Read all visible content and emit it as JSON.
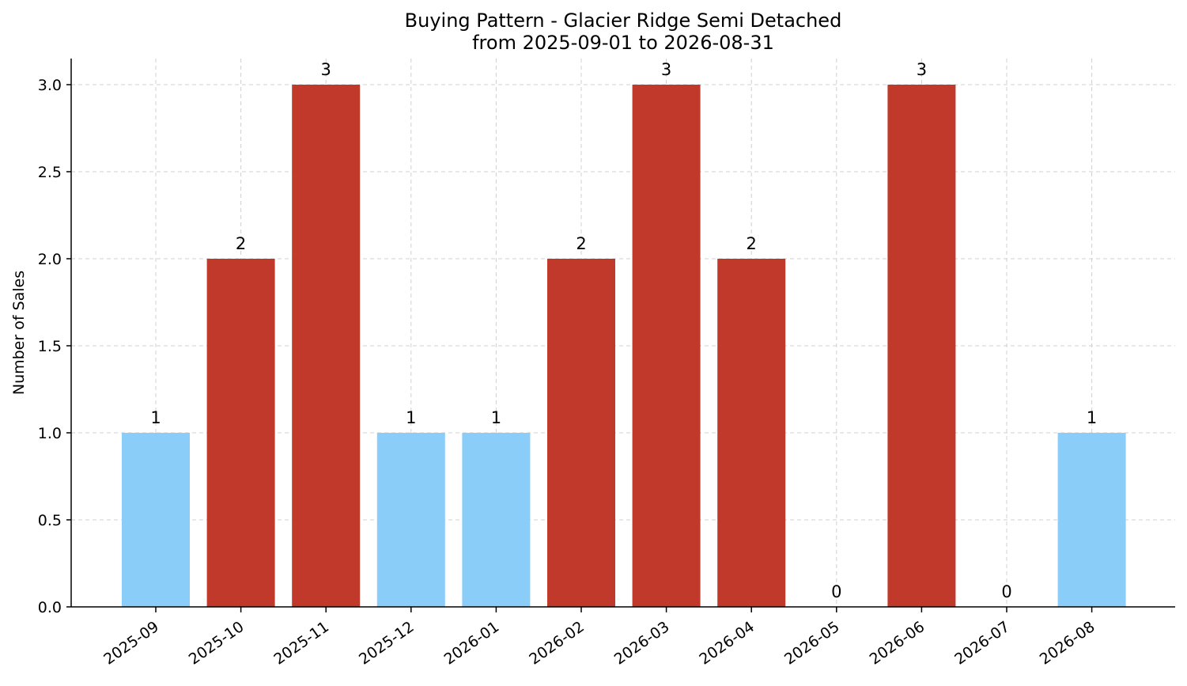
{
  "chart_data": {
    "type": "bar",
    "title": "Buying Pattern - Glacier Ridge Semi Detached",
    "subtitle": "from 2025-09-01 to 2026-08-31",
    "xlabel": "",
    "ylabel": "Number of Sales",
    "ylim": [
      0,
      3.15
    ],
    "yticks": [
      "0.0",
      "0.5",
      "1.0",
      "1.5",
      "2.0",
      "2.5",
      "3.0"
    ],
    "categories": [
      "2025-09",
      "2025-10",
      "2025-11",
      "2025-12",
      "2026-01",
      "2026-02",
      "2026-03",
      "2026-04",
      "2026-05",
      "2026-06",
      "2026-07",
      "2026-08"
    ],
    "values": [
      1,
      2,
      3,
      1,
      1,
      2,
      3,
      2,
      0,
      3,
      0,
      1
    ],
    "data_labels": [
      "1",
      "2",
      "3",
      "1",
      "1",
      "2",
      "3",
      "2",
      "0",
      "3",
      "0",
      "1"
    ],
    "grid": true,
    "colors": {
      "low": "#89cdf8",
      "high": "#c0392b"
    },
    "color_threshold": 2
  }
}
